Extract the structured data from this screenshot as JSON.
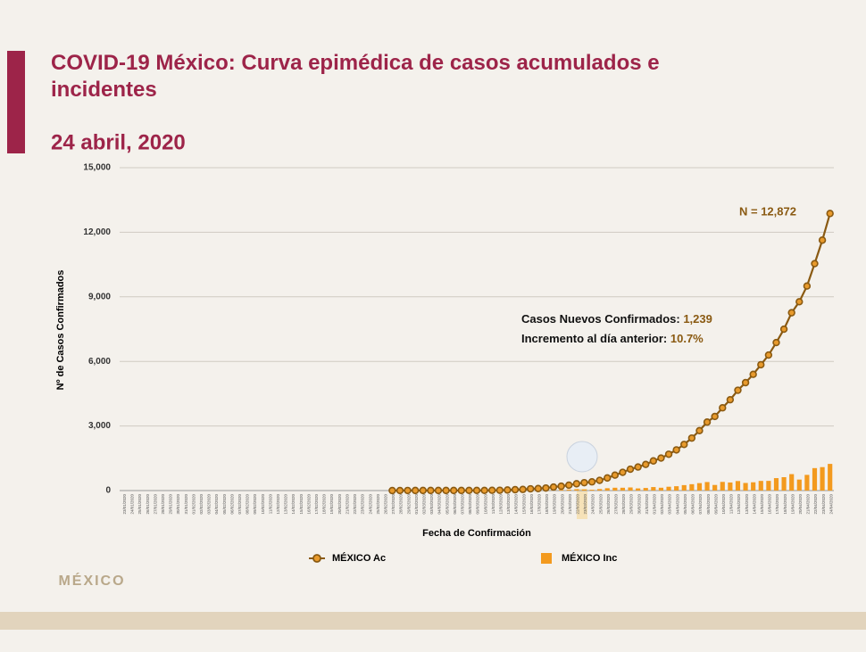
{
  "chart_data": {
    "type": "combo",
    "title": "COVID-19 México: Curva epimédica de casos acumulados e incidentes",
    "subtitle": "24 abril, 2020",
    "y_label": "Nº de Casos Confirmados",
    "x_label": "Fecha de Confirmación",
    "annotations": {
      "total": "N = 12,872",
      "new_label": "Casos Nuevos Confirmados: ",
      "new_value": "1,239",
      "inc_label": "Incremento al día anterior: ",
      "inc_value": "10.7%"
    },
    "categories": [
      "23/01/2020",
      "24/01/2020",
      "25/01/2020",
      "26/01/2020",
      "27/01/2020",
      "28/01/2020",
      "29/01/2020",
      "30/01/2020",
      "31/01/2020",
      "01/02/2020",
      "02/02/2020",
      "03/02/2020",
      "04/02/2020",
      "05/02/2020",
      "06/02/2020",
      "07/02/2020",
      "08/02/2020",
      "09/02/2020",
      "10/02/2020",
      "11/02/2020",
      "12/02/2020",
      "13/02/2020",
      "14/02/2020",
      "15/02/2020",
      "16/02/2020",
      "17/02/2020",
      "18/02/2020",
      "19/02/2020",
      "20/02/2020",
      "21/02/2020",
      "22/02/2020",
      "23/02/2020",
      "24/02/2020",
      "25/02/2020",
      "26/02/2020",
      "27/02/2020",
      "28/02/2020",
      "29/02/2020",
      "01/03/2020",
      "02/03/2020",
      "03/03/2020",
      "04/03/2020",
      "05/03/2020",
      "06/03/2020",
      "07/03/2020",
      "08/03/2020",
      "09/03/2020",
      "10/03/2020",
      "11/03/2020",
      "12/03/2020",
      "13/03/2020",
      "14/03/2020",
      "15/03/2020",
      "16/03/2020",
      "17/03/2020",
      "18/03/2020",
      "19/03/2020",
      "20/03/2020",
      "21/03/2020",
      "22/03/2020",
      "23/03/2020",
      "24/03/2020",
      "25/03/2020",
      "26/03/2020",
      "27/03/2020",
      "28/03/2020",
      "29/03/2020",
      "30/03/2020",
      "31/03/2020",
      "01/04/2020",
      "02/04/2020",
      "03/04/2020",
      "04/04/2020",
      "05/04/2020",
      "06/04/2020",
      "07/04/2020",
      "08/04/2020",
      "09/04/2020",
      "10/04/2020",
      "11/04/2020",
      "12/04/2020",
      "13/04/2020",
      "14/04/2020",
      "15/04/2020",
      "16/04/2020",
      "17/04/2020",
      "18/04/2020",
      "19/04/2020",
      "20/04/2020",
      "21/04/2020",
      "22/04/2020",
      "23/04/2020",
      "24/04/2020"
    ],
    "series": [
      {
        "name": "MÉXICO Ac",
        "type": "line",
        "color": "#8a5a12",
        "marker_color": "#e89a2c",
        "values": [
          null,
          null,
          null,
          null,
          null,
          null,
          null,
          null,
          null,
          null,
          null,
          null,
          null,
          null,
          null,
          null,
          null,
          null,
          null,
          null,
          null,
          null,
          null,
          null,
          null,
          null,
          null,
          null,
          null,
          null,
          null,
          null,
          null,
          null,
          null,
          1,
          2,
          4,
          5,
          5,
          5,
          5,
          5,
          5,
          6,
          7,
          7,
          7,
          12,
          15,
          26,
          41,
          53,
          82,
          93,
          118,
          164,
          203,
          251,
          316,
          367,
          405,
          475,
          585,
          717,
          848,
          993,
          1094,
          1215,
          1378,
          1510,
          1688,
          1890,
          2143,
          2439,
          2785,
          3181,
          3441,
          3844,
          4219,
          4661,
          5014,
          5399,
          5847,
          6297,
          6875,
          7497,
          8261,
          8772,
          9501,
          10544,
          11633,
          12872
        ]
      },
      {
        "name": "MÉXICO Inc",
        "type": "bar",
        "color": "#f39a1e",
        "values": [
          null,
          null,
          null,
          null,
          null,
          null,
          null,
          null,
          null,
          null,
          null,
          null,
          null,
          null,
          null,
          null,
          null,
          null,
          null,
          null,
          null,
          null,
          null,
          null,
          null,
          null,
          null,
          null,
          null,
          null,
          null,
          null,
          null,
          null,
          null,
          1,
          1,
          2,
          1,
          0,
          0,
          0,
          0,
          0,
          1,
          1,
          0,
          0,
          5,
          3,
          11,
          15,
          12,
          29,
          11,
          25,
          46,
          39,
          48,
          65,
          51,
          38,
          70,
          110,
          132,
          131,
          145,
          101,
          121,
          163,
          132,
          178,
          202,
          253,
          296,
          346,
          396,
          260,
          403,
          375,
          442,
          353,
          385,
          448,
          450,
          578,
          622,
          764,
          511,
          729,
          1043,
          1089,
          1239
        ]
      }
    ],
    "ylim": [
      0,
      15000
    ],
    "yticks": [
      0,
      {
        "value": 3000,
        "label": "3,000"
      },
      {
        "value": 6000,
        "label": "6,000"
      },
      {
        "value": 9000,
        "label": "9,000"
      },
      {
        "value": 12000,
        "label": "12,000"
      },
      {
        "value": 15000,
        "label": "15,000"
      }
    ],
    "grid": true
  }
}
